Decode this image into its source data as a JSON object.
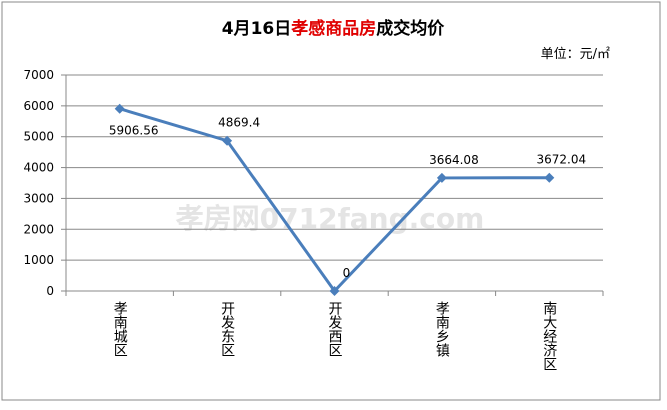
{
  "chart_data": {
    "type": "line",
    "title": [
      "4月16日",
      "孝感商品房",
      "成交均价"
    ],
    "unit": "单位：元/㎡",
    "watermark": "孝房网0712fang.com",
    "categories": [
      "孝南城区",
      "开发东区",
      "开发西区",
      "孝南乡镇",
      "南大经济区"
    ],
    "values": [
      5906.56,
      4869.4,
      0,
      3664.08,
      3672.04
    ],
    "color": "#4a7ebb",
    "ylim": [
      0,
      7000
    ],
    "yticks": [
      0,
      1000,
      2000,
      3000,
      4000,
      5000,
      6000,
      7000
    ],
    "grid": true
  }
}
